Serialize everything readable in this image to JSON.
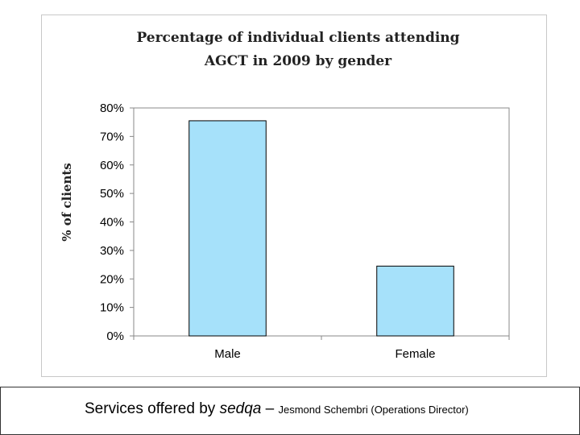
{
  "chart_data": {
    "type": "bar",
    "title_line1": "Percentage of individual clients attending",
    "title_line2": "AGCT in 2009 by gender",
    "xlabel": "",
    "ylabel": "% of clients",
    "categories": [
      "Male",
      "Female"
    ],
    "values": [
      75.5,
      24.5
    ],
    "ylim": [
      0,
      80
    ],
    "yticks": [
      "0%",
      "10%",
      "20%",
      "30%",
      "40%",
      "50%",
      "60%",
      "70%",
      "80%"
    ],
    "grid": false,
    "legend": "none",
    "bar_color": "#a6e1fa"
  },
  "footer": {
    "prefix": "Services offered by ",
    "brand": "sedqa",
    "separator": " – ",
    "speaker": "Jesmond Schembri (Operations Director)"
  }
}
